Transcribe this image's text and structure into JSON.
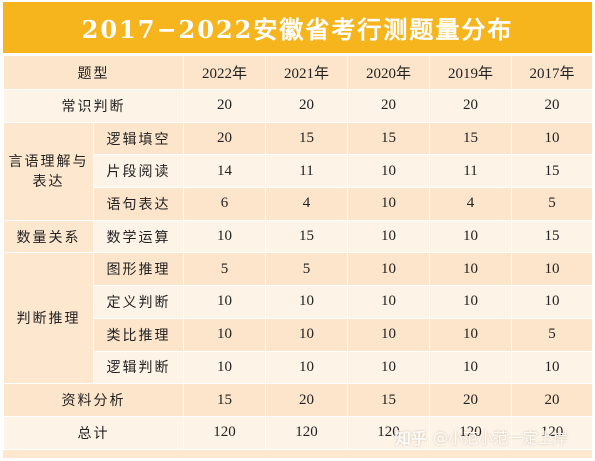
{
  "title": "2017−2022安徽省考行测题量分布",
  "headers": [
    "题型",
    "2022年",
    "2021年",
    "2020年",
    "2019年",
    "2017年"
  ],
  "rows": {
    "changshi": {
      "category": "常识判断",
      "values": [
        "20",
        "20",
        "20",
        "20",
        "20"
      ]
    },
    "yanyu_category": "言语理解与表达",
    "luoji_tiankong": {
      "label": "逻辑填空",
      "values": [
        "20",
        "15",
        "15",
        "15",
        "10"
      ]
    },
    "pianduan": {
      "label": "片段阅读",
      "values": [
        "14",
        "11",
        "10",
        "11",
        "15"
      ]
    },
    "yuju": {
      "label": "语句表达",
      "values": [
        "6",
        "4",
        "10",
        "4",
        "5"
      ]
    },
    "shuliang": {
      "category": "数量关系",
      "label": "数学运算",
      "values": [
        "10",
        "15",
        "10",
        "10",
        "15"
      ]
    },
    "panduan_category": "判断推理",
    "tuxing": {
      "label": "图形推理",
      "values": [
        "5",
        "5",
        "10",
        "10",
        "10"
      ]
    },
    "dingyi": {
      "label": "定义判断",
      "values": [
        "10",
        "10",
        "10",
        "10",
        "10"
      ]
    },
    "leibi": {
      "label": "类比推理",
      "values": [
        "10",
        "10",
        "10",
        "10",
        "5"
      ]
    },
    "luoji_panduan": {
      "label": "逻辑判断",
      "values": [
        "10",
        "10",
        "10",
        "10",
        "10"
      ]
    },
    "ziliao": {
      "category": "资料分析",
      "values": [
        "15",
        "20",
        "15",
        "20",
        "20"
      ]
    },
    "total": {
      "category": "总计",
      "values": [
        "120",
        "120",
        "120",
        "120",
        "120"
      ]
    }
  },
  "watermark": {
    "brand": "知乎",
    "handle": "@小范小范一定上岸"
  },
  "colors": {
    "title_bg": "#f6b51c",
    "row_light": "#fdf3e7",
    "row_dark": "#fce5cb"
  }
}
